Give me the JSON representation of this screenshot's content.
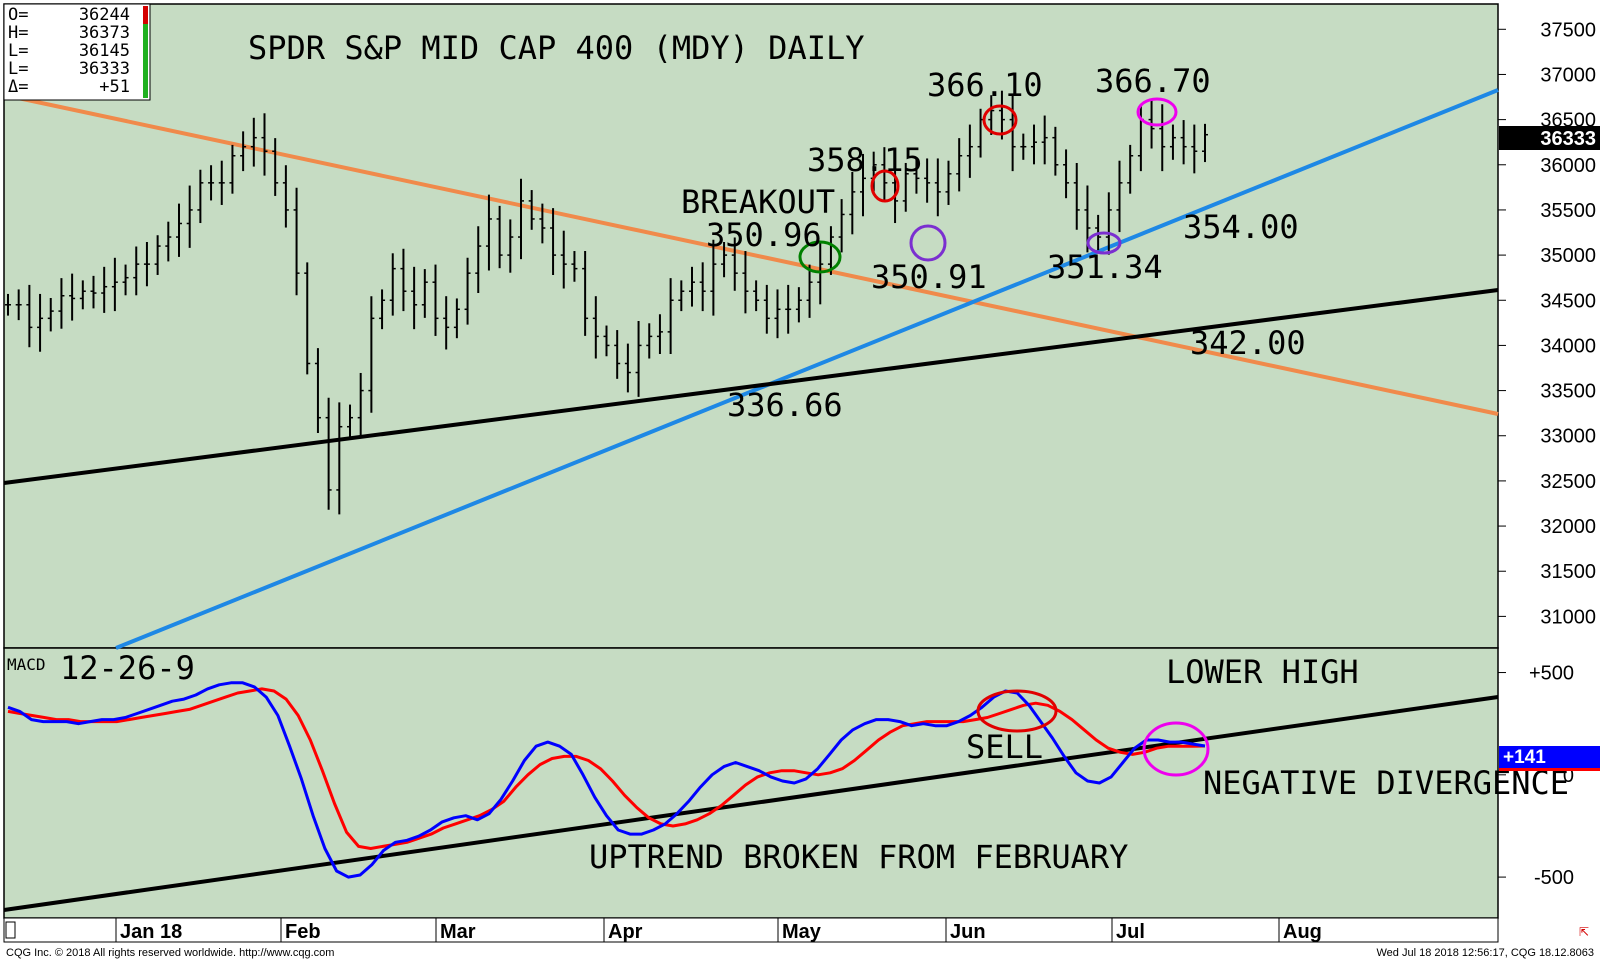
{
  "ohlc_box": {
    "rows": [
      {
        "label": "O=",
        "value": "36244"
      },
      {
        "label": "H=",
        "value": "36373"
      },
      {
        "label": "L=",
        "value": "36145"
      },
      {
        "label": "L=",
        "value": "36333"
      },
      {
        "label": "Δ=",
        "value": "+51"
      }
    ]
  },
  "chart_data": [
    {
      "type": "bar",
      "title": "SPDR S&P MID CAP 400 (MDY) DAILY",
      "y_ticks": [
        31000,
        31500,
        32000,
        32500,
        33000,
        33500,
        34000,
        34500,
        35000,
        35500,
        36000,
        36500,
        37000,
        37500
      ],
      "ylim": [
        30650,
        37780
      ],
      "last_price_label": "36333",
      "x_ticks": [
        "Jan 18",
        "Feb",
        "Mar",
        "Apr",
        "May",
        "Jun",
        "Jul",
        "Aug"
      ],
      "series": [
        {
          "values": [
            34450,
            34450,
            34200,
            34300,
            34380,
            34550,
            34520,
            34600,
            34580,
            34650,
            34700,
            34750,
            34900,
            34900,
            35100,
            35200,
            35350,
            35500,
            35800,
            35800,
            35800,
            36100,
            36200,
            36300,
            36150,
            35800,
            35500,
            34800,
            33800,
            33200,
            32400,
            33100,
            33200,
            33500,
            34300,
            34500,
            34850,
            34600,
            34450,
            34700,
            34300,
            34200,
            34400,
            34800,
            35100,
            35400,
            35000,
            35200,
            35600,
            35400,
            35300,
            35000,
            34900,
            34850,
            34300,
            34100,
            34000,
            33800,
            33700,
            34000,
            34100,
            34150,
            34500,
            34600,
            34700,
            34600,
            34900,
            35000,
            34800,
            34600,
            34500,
            34300,
            34400,
            34400,
            34500,
            34700,
            34900,
            35200,
            35450,
            35700,
            35850,
            36000,
            35800,
            35600,
            35900,
            35850,
            35800,
            35700,
            35900,
            36100,
            36200,
            36500,
            36600,
            36500,
            36200,
            36200,
            36250,
            36300,
            36000,
            35800,
            35500,
            35300,
            35200,
            35500,
            35800,
            36100,
            36500,
            36400,
            36200,
            36300,
            36200,
            36150,
            36333
          ]
        }
      ],
      "annotations": [
        "BREAKOUT",
        "350.96",
        "358.15",
        "350.91",
        "366.10",
        "366.70",
        "351.34",
        "354.00",
        "342.00",
        "336.66"
      ]
    },
    {
      "type": "line",
      "title": "MACD",
      "subtitle": "12-26-9",
      "y_ticks": [
        -500,
        0,
        500
      ],
      "y_tick_labels": [
        "-500",
        "0",
        "+500"
      ],
      "last_value_label": "+141",
      "series": [
        {
          "color": "#0000ff",
          "values": [
            330,
            310,
            270,
            260,
            260,
            260,
            250,
            260,
            270,
            270,
            280,
            300,
            320,
            340,
            360,
            370,
            390,
            420,
            440,
            450,
            450,
            430,
            380,
            290,
            140,
            -20,
            -200,
            -360,
            -470,
            -500,
            -490,
            -440,
            -370,
            -330,
            -320,
            -300,
            -270,
            -230,
            -210,
            -200,
            -220,
            -190,
            -120,
            -30,
            70,
            140,
            160,
            140,
            100,
            0,
            -110,
            -200,
            -270,
            -290,
            -290,
            -270,
            -240,
            -190,
            -130,
            -60,
            0,
            40,
            60,
            40,
            20,
            -10,
            -30,
            -40,
            -20,
            30,
            100,
            170,
            220,
            250,
            270,
            270,
            260,
            240,
            250,
            240,
            240,
            260,
            290,
            330,
            380,
            410,
            400,
            340,
            260,
            180,
            90,
            10,
            -30,
            -40,
            -10,
            60,
            130,
            170,
            170,
            160,
            160,
            150,
            141
          ]
        },
        {
          "color": "#ff0000",
          "values": [
            310,
            300,
            290,
            280,
            270,
            270,
            260,
            260,
            260,
            260,
            270,
            280,
            290,
            300,
            310,
            320,
            340,
            360,
            380,
            400,
            410,
            420,
            410,
            370,
            290,
            170,
            20,
            -140,
            -280,
            -350,
            -360,
            -350,
            -340,
            -330,
            -310,
            -290,
            -260,
            -240,
            -220,
            -200,
            -170,
            -130,
            -60,
            0,
            50,
            80,
            90,
            90,
            70,
            30,
            -30,
            -100,
            -160,
            -210,
            -240,
            -250,
            -240,
            -220,
            -190,
            -150,
            -100,
            -50,
            -10,
            10,
            20,
            20,
            10,
            0,
            10,
            30,
            70,
            120,
            170,
            210,
            240,
            250,
            260,
            260,
            260,
            260,
            270,
            280,
            300,
            320,
            340,
            350,
            340,
            310,
            270,
            220,
            170,
            130,
            110,
            100,
            110,
            130,
            140,
            140,
            140,
            141
          ]
        }
      ],
      "annotations": [
        "SELL",
        "LOWER HIGH",
        "NEGATIVE DIVERGENCE",
        "UPTREND BROKEN FROM FEBRUARY"
      ]
    }
  ],
  "footer": {
    "copyright": "CQG Inc. © 2018 All rights reserved worldwide. http://www.cqg.com",
    "timestamp": "Wed Jul 18 2018 12:56:17, CQG 18.12.8063"
  },
  "colors": {
    "background": "#c6dcc3",
    "orange_trend": "#f08a4b",
    "blue_trend": "#1e88e5",
    "black_trend": "#000000",
    "macd_line": "#0000ff",
    "signal_line": "#ff0000",
    "circle_green": "#008000",
    "circle_red": "#e00000",
    "circle_purple": "#7b2fd0",
    "circle_magenta": "#ee00ee"
  }
}
